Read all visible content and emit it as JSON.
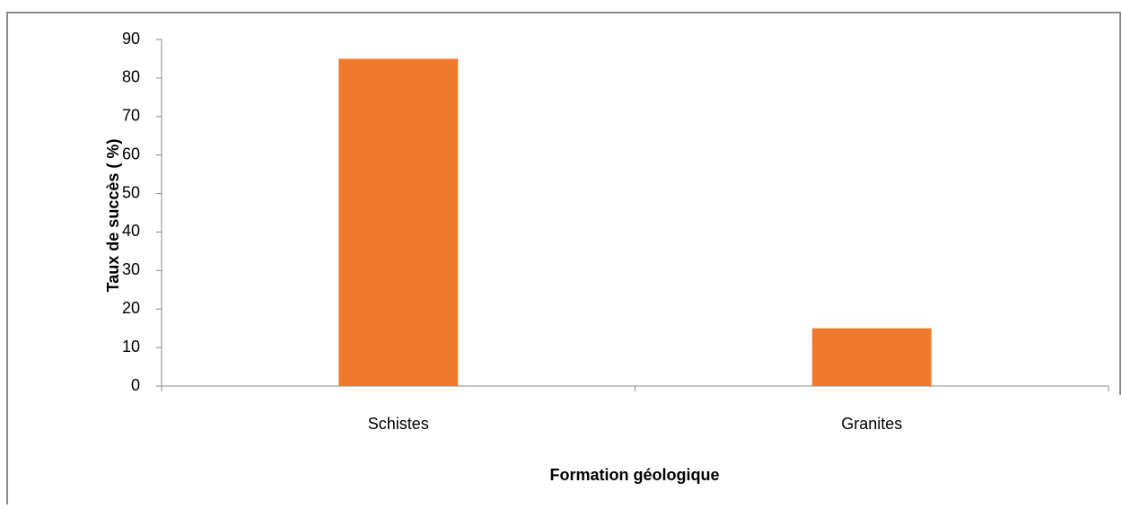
{
  "chart_data": {
    "type": "bar",
    "categories": [
      "Schistes",
      "Granites"
    ],
    "values": [
      85,
      15
    ],
    "color": "#ef7a2e",
    "ylim": [
      0,
      90
    ],
    "yticks": [
      0,
      10,
      20,
      30,
      40,
      50,
      60,
      70,
      80,
      90
    ],
    "xlabel": "Formation géologique",
    "ylabel": "Taux de succès ( %)"
  }
}
